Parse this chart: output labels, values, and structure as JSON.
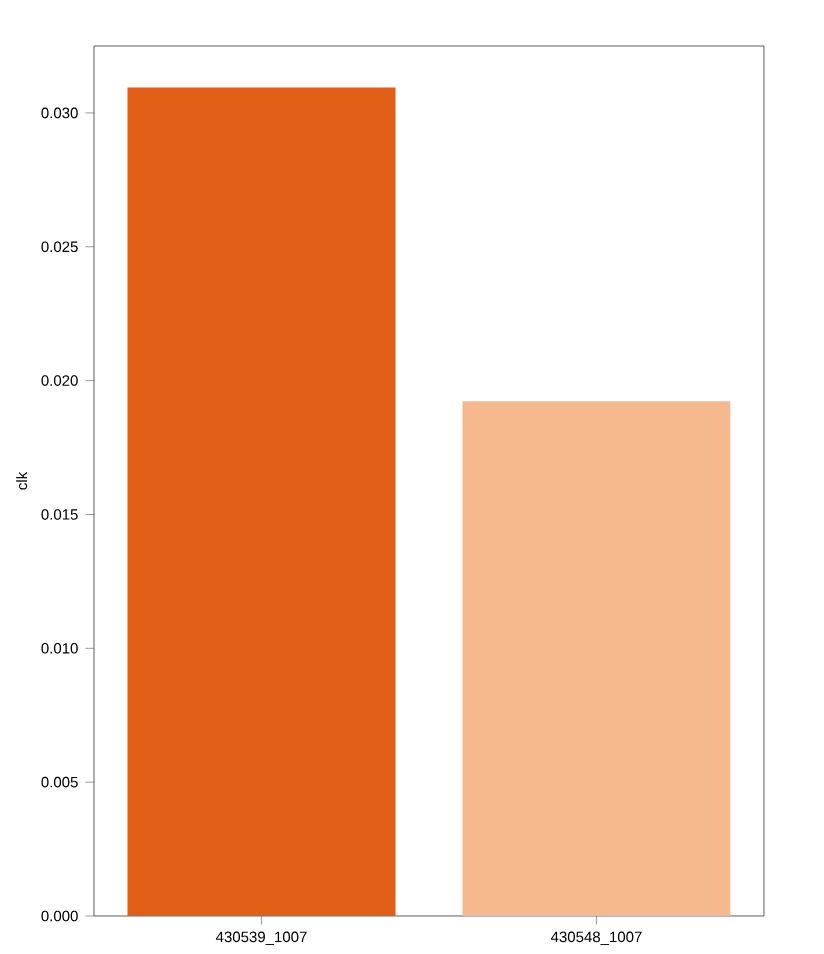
{
  "chart_data": {
    "type": "bar",
    "ylabel": "clk",
    "categories": [
      "430539_1007",
      "430548_1007"
    ],
    "values": [
      0.03095,
      0.01923
    ],
    "colors": [
      "#e05e16",
      "#f6b88d"
    ],
    "ylim": [
      0,
      0.0325
    ],
    "yticks": [
      {
        "value": 0,
        "label": "0.000"
      },
      {
        "value": 0.005,
        "label": "0.005"
      },
      {
        "value": 0.01,
        "label": "0.010"
      },
      {
        "value": 0.015,
        "label": "0.015"
      },
      {
        "value": 0.02,
        "label": "0.020"
      },
      {
        "value": 0.025,
        "label": "0.025"
      },
      {
        "value": 0.03,
        "label": "0.030"
      }
    ],
    "grid": false
  }
}
